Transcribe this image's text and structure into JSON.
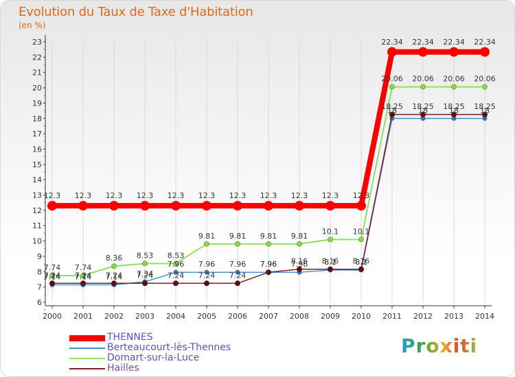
{
  "title": "Evolution du Taux de Taxe d'Habitation",
  "subtitle": "(en %)",
  "logo_text": "Proxiti",
  "chart_data": {
    "type": "line",
    "title": "Evolution du Taux de Taxe d'Habitation",
    "ylabel": "(en %)",
    "xlabel": "",
    "x": [
      "2000",
      "2001",
      "2002",
      "2003",
      "2004",
      "2005",
      "2006",
      "2007",
      "2008",
      "2009",
      "2010",
      "2011",
      "2012",
      "2013",
      "2014"
    ],
    "ylim": [
      6,
      23
    ],
    "yticks": [
      "6",
      "7",
      "8",
      "9",
      "10",
      "11",
      "12",
      "13",
      "14",
      "15",
      "16",
      "17",
      "18",
      "19",
      "20",
      "21",
      "22",
      "23"
    ],
    "grid": "vertical",
    "legend_position": "bottom-left",
    "series": [
      {
        "name": "THENNES",
        "color": "#ff0000",
        "values": [
          12.3,
          12.3,
          12.3,
          12.3,
          12.3,
          12.3,
          12.3,
          12.3,
          12.3,
          12.3,
          12.3,
          22.34,
          22.34,
          22.34,
          22.34
        ],
        "labels": [
          "12.3",
          "12.3",
          "12.3",
          "12.3",
          "12.3",
          "12.3",
          "12.3",
          "12.3",
          "12.3",
          "12.3",
          "12.3",
          "22.34",
          "22.34",
          "22.34",
          "22.34"
        ]
      },
      {
        "name": "Berteaucourt-lès-Thennes",
        "color": "#4a8fd0",
        "values": [
          7.14,
          7.14,
          7.14,
          7.34,
          7.96,
          7.96,
          7.96,
          7.96,
          7.96,
          8.1,
          8.1,
          18,
          18,
          18,
          18
        ],
        "labels": [
          "7.14",
          "7.14",
          "7.14",
          "7.34",
          "7.96",
          "7.96",
          "7.96",
          "7.96",
          "7.96",
          "8.1",
          "8.1",
          "18",
          "18",
          "18",
          "18"
        ]
      },
      {
        "name": "Domart-sur-la-Luce",
        "color": "#90e060",
        "values": [
          7.74,
          7.74,
          8.36,
          8.53,
          8.53,
          9.81,
          9.81,
          9.81,
          9.81,
          10.1,
          10.1,
          20.06,
          20.06,
          20.06,
          20.06
        ],
        "labels": [
          "7.74",
          "7.74",
          "8.36",
          "8.53",
          "8.53",
          "9.81",
          "9.81",
          "9.81",
          "9.81",
          "10.1",
          "10.1",
          "20.06",
          "20.06",
          "20.06",
          "20.06"
        ]
      },
      {
        "name": "Hailles",
        "color": "#7a2020",
        "values": [
          7.24,
          7.24,
          7.24,
          7.24,
          7.24,
          7.24,
          7.24,
          7.96,
          8.16,
          8.16,
          8.16,
          18.25,
          18.25,
          18.25,
          18.25
        ],
        "labels": [
          "7.24",
          "7.24",
          "7.24",
          "7.24",
          "7.24",
          "7.24",
          "7.24",
          "7.96",
          "8.16",
          "8.16",
          "8.16",
          "18.25",
          "18.25",
          "18.25",
          "18.25"
        ]
      }
    ]
  }
}
